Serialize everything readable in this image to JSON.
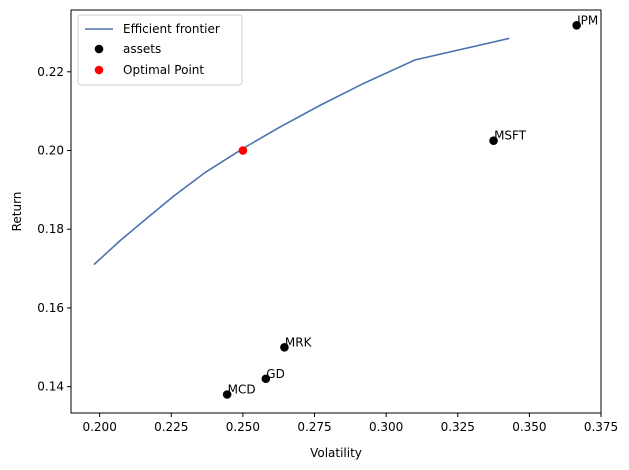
{
  "chart_data": {
    "type": "scatter",
    "xlabel": "Volatility",
    "ylabel": "Return",
    "xlim": [
      0.19,
      0.375
    ],
    "ylim": [
      0.1333,
      0.2357
    ],
    "xticks": [
      0.2,
      0.225,
      0.25,
      0.275,
      0.3,
      0.325,
      0.35,
      0.375
    ],
    "xtick_labels": [
      "0.200",
      "0.225",
      "0.250",
      "0.275",
      "0.300",
      "0.325",
      "0.350",
      "0.375"
    ],
    "yticks": [
      0.14,
      0.16,
      0.18,
      0.2,
      0.22
    ],
    "ytick_labels": [
      "0.14",
      "0.16",
      "0.18",
      "0.20",
      "0.22"
    ],
    "grid": false,
    "legend_position": "top-left",
    "series": [
      {
        "name": "Efficient frontier",
        "kind": "line",
        "color": "#4c72b0",
        "x": [
          0.198,
          0.207,
          0.216,
          0.226,
          0.237,
          0.25,
          0.263,
          0.277,
          0.292,
          0.31,
          0.343
        ],
        "y": [
          0.171,
          0.177,
          0.1825,
          0.1885,
          0.1945,
          0.2005,
          0.206,
          0.2115,
          0.217,
          0.223,
          0.2285
        ]
      },
      {
        "name": "assets",
        "kind": "scatter",
        "color": "#000000",
        "points": [
          {
            "label": "JPM",
            "x": 0.3665,
            "y": 0.2318
          },
          {
            "label": "MSFT",
            "x": 0.3375,
            "y": 0.2025
          },
          {
            "label": "MRK",
            "x": 0.2645,
            "y": 0.15
          },
          {
            "label": "GD",
            "x": 0.258,
            "y": 0.142
          },
          {
            "label": "MCD",
            "x": 0.2445,
            "y": 0.138
          }
        ]
      },
      {
        "name": "Optimal Point",
        "kind": "scatter",
        "color": "#ff0000",
        "points": [
          {
            "x": 0.25,
            "y": 0.2
          }
        ]
      }
    ]
  }
}
